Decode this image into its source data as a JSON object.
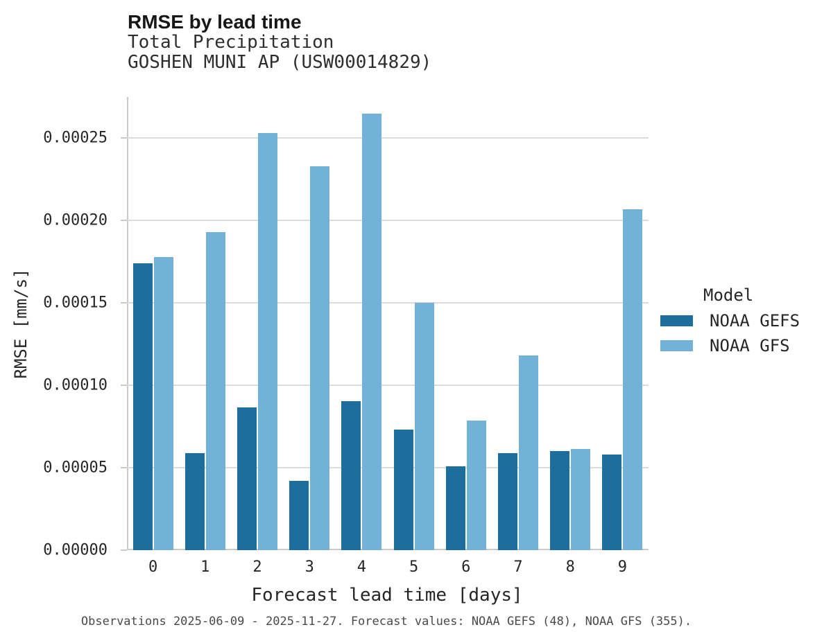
{
  "chart_data": {
    "type": "bar",
    "title": "RMSE by lead time",
    "subtitle": [
      "Total Precipitation",
      "GOSHEN MUNI AP (USW00014829)"
    ],
    "categories": [
      "0",
      "1",
      "2",
      "3",
      "4",
      "5",
      "6",
      "7",
      "8",
      "9"
    ],
    "series": [
      {
        "name": "NOAA GEFS",
        "color": "#1d6e9e",
        "values": [
          0.000174,
          5.9e-05,
          8.65e-05,
          4.2e-05,
          9.05e-05,
          7.3e-05,
          5.1e-05,
          5.9e-05,
          6e-05,
          5.8e-05
        ]
      },
      {
        "name": "NOAA GFS",
        "color": "#72b1d8",
        "values": [
          0.000178,
          0.000193,
          0.000253,
          0.000233,
          0.000265,
          0.00015,
          7.85e-05,
          0.000118,
          6.15e-05,
          0.000207
        ]
      }
    ],
    "xlabel": "Forecast lead time [days]",
    "ylabel": "RMSE [mm/s]",
    "ylim": [
      0,
      0.000275
    ],
    "yticks": [
      0,
      5e-05,
      0.0001,
      0.00015,
      0.0002,
      0.00025
    ],
    "ytick_labels": [
      "0.00000",
      "0.00005",
      "0.00010",
      "0.00015",
      "0.00020",
      "0.00025"
    ],
    "grid": true,
    "legend": {
      "title": "Model",
      "position": "right"
    }
  },
  "caption": "Observations 2025-06-09 - 2025-11-27. Forecast values: NOAA GEFS (48), NOAA GFS (355)."
}
